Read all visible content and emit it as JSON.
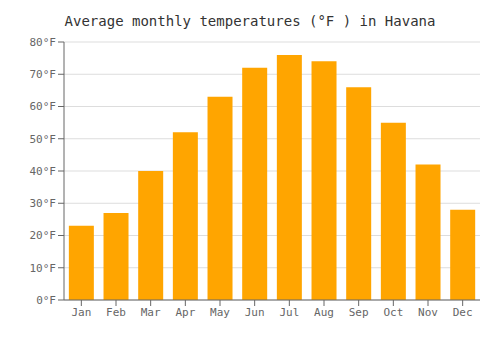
{
  "chart_data": {
    "type": "bar",
    "title": "Average monthly temperatures (°F ) in Havana",
    "categories": [
      "Jan",
      "Feb",
      "Mar",
      "Apr",
      "May",
      "Jun",
      "Jul",
      "Aug",
      "Sep",
      "Oct",
      "Nov",
      "Dec"
    ],
    "values": [
      23,
      27,
      40,
      52,
      63,
      72,
      76,
      74,
      66,
      55,
      42,
      28
    ],
    "color": "#FFA500",
    "ylim": [
      0,
      80
    ],
    "yticks": [
      {
        "value": 0,
        "label": "0°F"
      },
      {
        "value": 10,
        "label": "10°F"
      },
      {
        "value": 20,
        "label": "20°F"
      },
      {
        "value": 30,
        "label": "30°F"
      },
      {
        "value": 40,
        "label": "40°F"
      },
      {
        "value": 50,
        "label": "50°F"
      },
      {
        "value": 60,
        "label": "60°F"
      },
      {
        "value": 70,
        "label": "70°F"
      },
      {
        "value": 80,
        "label": "80°F"
      }
    ],
    "grid": true
  }
}
